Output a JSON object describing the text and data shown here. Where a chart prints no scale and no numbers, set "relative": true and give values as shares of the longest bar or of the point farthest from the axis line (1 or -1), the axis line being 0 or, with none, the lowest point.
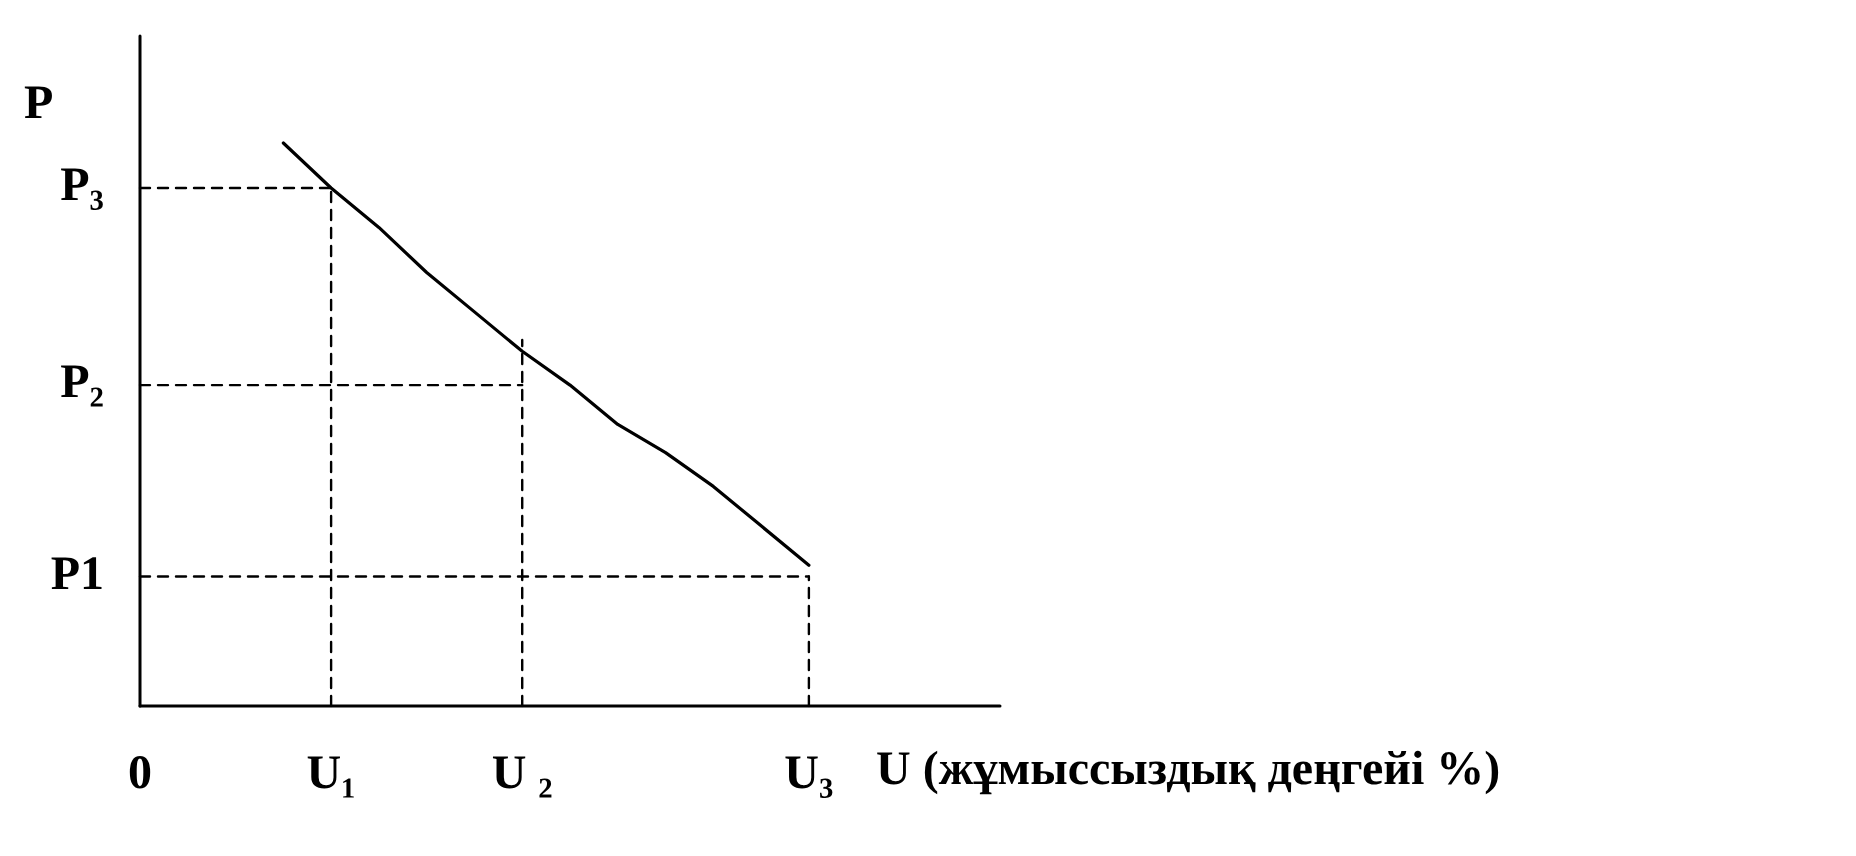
{
  "chart_data": {
    "type": "line",
    "relative": true,
    "xlabel": "U (жұмыссыздық деңгейі %)",
    "ylabel": "P",
    "categories": [
      "0",
      null,
      null,
      null,
      "U₁",
      null,
      null,
      null,
      "U ₂",
      null,
      null,
      null,
      null,
      null,
      "U₃",
      null,
      null,
      null,
      null
    ],
    "annotations": [
      "P₃",
      "P₂",
      "P1"
    ],
    "grid": false,
    "marker": "none",
    "series": [
      {
        "color": "#000000",
        "line_style": "solid",
        "values": [
          null,
          null,
          null,
          1,
          0.92,
          0.85,
          0.77,
          0.7,
          0.63,
          0.57,
          0.5,
          0.45,
          0.39,
          0.32,
          0.25,
          null,
          null,
          null,
          null
        ]
      },
      {
        "color": "#000000",
        "line_style": "dashed",
        "values": [
          0.92,
          0.92,
          0.92,
          0.92,
          0.92,
          null,
          null,
          null,
          null,
          null,
          null,
          null,
          null,
          null,
          null,
          null,
          null,
          null,
          null
        ]
      },
      {
        "color": "#000000",
        "line_style": "dashed",
        "values": [
          0.57,
          0.57,
          0.57,
          0.57,
          0.57,
          0.57,
          0.57,
          0.57,
          0.57,
          null,
          null,
          null,
          null,
          null,
          null,
          null,
          null,
          null,
          null
        ]
      },
      {
        "color": "#000000",
        "line_style": "dashed",
        "values": [
          0.23,
          0.23,
          0.23,
          0.23,
          0.23,
          0.23,
          0.23,
          0.23,
          0.23,
          0.23,
          0.23,
          0.23,
          0.23,
          0.23,
          0.23,
          null,
          null,
          null,
          null
        ]
      },
      {
        "color": "#000000",
        "line_style": "dashed",
        "x": [
          "U₁",
          "U₁"
        ],
        "values": [
          0,
          0.92
        ]
      },
      {
        "color": "#000000",
        "line_style": "dashed",
        "x": [
          "U ₂",
          "U ₂"
        ],
        "values": [
          0,
          0.65
        ]
      },
      {
        "color": "#000000",
        "line_style": "dashed",
        "x": [
          "U₃",
          "U₃"
        ],
        "values": [
          0,
          0.23
        ]
      }
    ]
  }
}
